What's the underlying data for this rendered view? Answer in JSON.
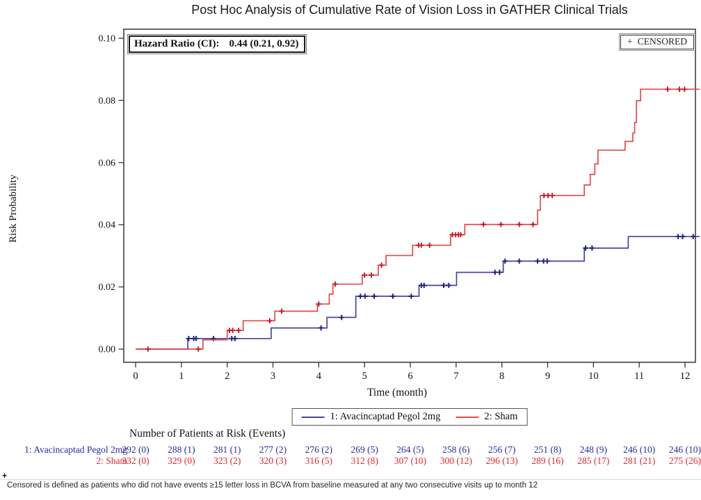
{
  "page": {
    "title": "Post Hoc Analysis of Cumulative Rate of Vision Loss in GATHER Clinical Trials",
    "footnote_marker": "+",
    "footnote": "Censored is defined as patients who did not have events ≥15 letter loss in BCVA from baseline measured at any two consecutive visits up to month 12"
  },
  "chart_data": {
    "type": "line",
    "subtype": "kaplan-meier-step-curve",
    "title": "Post Hoc Analysis of Cumulative Rate of Vision Loss in GATHER Clinical Trials",
    "xlabel": "Time (month)",
    "ylabel": "Risk Probability",
    "xlim": [
      0,
      12
    ],
    "ylim": [
      0.0,
      0.1
    ],
    "grid": false,
    "legend_position": "bottom",
    "xticks": [
      0,
      1,
      2,
      3,
      4,
      5,
      6,
      7,
      8,
      9,
      10,
      11,
      12
    ],
    "xtick_labels": [
      "0",
      "1",
      "2",
      "3",
      "4",
      "5",
      "6",
      "7",
      "8",
      "9",
      "10",
      "11",
      "12"
    ],
    "yticks": [
      0.0,
      0.02,
      0.04,
      0.06,
      0.08,
      0.1
    ],
    "ytick_labels": [
      "0.00",
      "0.02",
      "0.04",
      "0.06",
      "0.08",
      "0.10"
    ],
    "hazard_ratio": {
      "label": "Hazard Ratio (CI):",
      "value": "0.44 (0.21, 0.92)"
    },
    "censored_box": {
      "marker": "+",
      "label": "CENSORED"
    },
    "series": [
      {
        "name": "1: Avacincaptad Pegol 2mg",
        "color": "#45459f",
        "censor_color": "#1d1d7e",
        "end_time": 12.32,
        "steps": [
          [
            0,
            0
          ],
          [
            1.14,
            0.0034
          ],
          [
            2.96,
            0.0068
          ],
          [
            4.18,
            0.0102
          ],
          [
            4.81,
            0.017
          ],
          [
            6.19,
            0.0205
          ],
          [
            7.01,
            0.0247
          ],
          [
            8.03,
            0.0283
          ],
          [
            9.8,
            0.0325
          ],
          [
            10.76,
            0.0362
          ]
        ],
        "censors": [
          [
            1.16,
            0.0034
          ],
          [
            1.27,
            0.0034
          ],
          [
            1.32,
            0.0034
          ],
          [
            1.7,
            0.0034
          ],
          [
            2.1,
            0.0034
          ],
          [
            2.17,
            0.0034
          ],
          [
            4.05,
            0.0068
          ],
          [
            4.5,
            0.0102
          ],
          [
            4.91,
            0.017
          ],
          [
            5.01,
            0.017
          ],
          [
            5.21,
            0.017
          ],
          [
            5.62,
            0.017
          ],
          [
            6.02,
            0.017
          ],
          [
            6.24,
            0.0205
          ],
          [
            6.3,
            0.0205
          ],
          [
            6.73,
            0.0205
          ],
          [
            6.84,
            0.0205
          ],
          [
            7.85,
            0.0247
          ],
          [
            7.95,
            0.0247
          ],
          [
            8.07,
            0.0283
          ],
          [
            8.38,
            0.0283
          ],
          [
            8.78,
            0.0283
          ],
          [
            8.91,
            0.0283
          ],
          [
            8.99,
            0.0283
          ],
          [
            9.83,
            0.0325
          ],
          [
            9.97,
            0.0325
          ],
          [
            11.85,
            0.0362
          ],
          [
            11.95,
            0.0362
          ],
          [
            12.18,
            0.0362
          ]
        ]
      },
      {
        "name": "2: Sham",
        "color": "#e14a4a",
        "censor_color": "#c01a2a",
        "end_time": 12.32,
        "steps": [
          [
            0,
            0
          ],
          [
            1.47,
            0.003
          ],
          [
            2.0,
            0.006
          ],
          [
            2.35,
            0.0091
          ],
          [
            3.04,
            0.0122
          ],
          [
            3.97,
            0.0145
          ],
          [
            4.23,
            0.0177
          ],
          [
            4.31,
            0.0209
          ],
          [
            4.95,
            0.0238
          ],
          [
            5.3,
            0.027
          ],
          [
            5.47,
            0.0301
          ],
          [
            6.05,
            0.0334
          ],
          [
            6.88,
            0.0368
          ],
          [
            7.19,
            0.0401
          ],
          [
            8.78,
            0.0447
          ],
          [
            8.84,
            0.0494
          ],
          [
            9.8,
            0.0528
          ],
          [
            9.93,
            0.0562
          ],
          [
            10.03,
            0.0596
          ],
          [
            10.1,
            0.064
          ],
          [
            10.69,
            0.0668
          ],
          [
            10.86,
            0.0695
          ],
          [
            10.9,
            0.0729
          ],
          [
            10.94,
            0.0799
          ],
          [
            11.03,
            0.0836
          ]
        ],
        "censors": [
          [
            0.27,
            0
          ],
          [
            1.37,
            0
          ],
          [
            2.05,
            0.006
          ],
          [
            2.12,
            0.006
          ],
          [
            2.25,
            0.006
          ],
          [
            2.93,
            0.0091
          ],
          [
            3.19,
            0.0122
          ],
          [
            4.0,
            0.0145
          ],
          [
            4.36,
            0.0209
          ],
          [
            5.0,
            0.0238
          ],
          [
            5.15,
            0.0238
          ],
          [
            5.37,
            0.027
          ],
          [
            6.18,
            0.0334
          ],
          [
            6.24,
            0.0334
          ],
          [
            6.42,
            0.0334
          ],
          [
            6.92,
            0.0368
          ],
          [
            6.99,
            0.0368
          ],
          [
            7.05,
            0.0368
          ],
          [
            7.1,
            0.0368
          ],
          [
            7.6,
            0.0401
          ],
          [
            7.98,
            0.0401
          ],
          [
            8.38,
            0.0401
          ],
          [
            8.68,
            0.0401
          ],
          [
            8.92,
            0.0494
          ],
          [
            9.01,
            0.0494
          ],
          [
            9.1,
            0.0494
          ],
          [
            11.62,
            0.0836
          ],
          [
            11.88,
            0.0836
          ],
          [
            11.99,
            0.0836
          ]
        ]
      }
    ],
    "risk_table": {
      "title": "Number of Patients at Risk (Events)",
      "months": [
        0,
        1,
        2,
        3,
        4,
        5,
        6,
        7,
        8,
        9,
        10,
        11,
        12
      ],
      "rows": [
        {
          "label": "1: Avacincaptad Pegol 2mg",
          "color": "#2a2a9c",
          "values": [
            "292 (0)",
            "288 (1)",
            "281 (1)",
            "277 (2)",
            "276 (2)",
            "269 (5)",
            "264 (5)",
            "258 (6)",
            "256 (7)",
            "251 (8)",
            "248 (9)",
            "246 (10)",
            "246 (10)"
          ]
        },
        {
          "label": "2: Sham",
          "color": "#e3242b",
          "values": [
            "332 (0)",
            "329 (0)",
            "323 (2)",
            "320 (3)",
            "316 (5)",
            "312 (8)",
            "307 (10)",
            "300 (12)",
            "296 (13)",
            "289 (16)",
            "285 (17)",
            "281 (21)",
            "275 (26)"
          ]
        }
      ]
    }
  }
}
